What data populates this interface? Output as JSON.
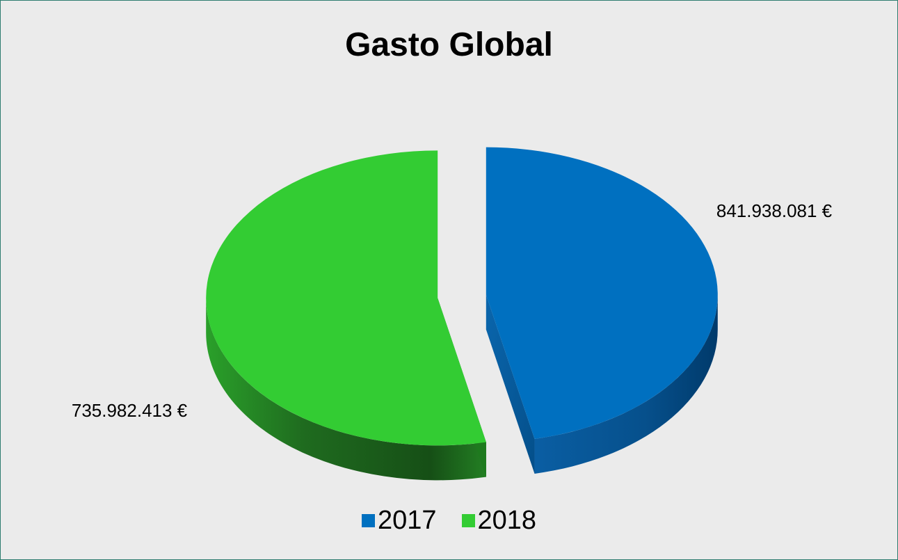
{
  "chart_data": {
    "type": "pie",
    "title": "Gasto Global",
    "categories": [
      "2017",
      "2018"
    ],
    "values": [
      735982413,
      841938081
    ],
    "data_labels": [
      "735.982.413 €",
      "841.938.081 €"
    ],
    "colors": [
      "#0070c0",
      "#33cc33"
    ],
    "legend_position": "bottom",
    "style": "3d-exploded"
  }
}
